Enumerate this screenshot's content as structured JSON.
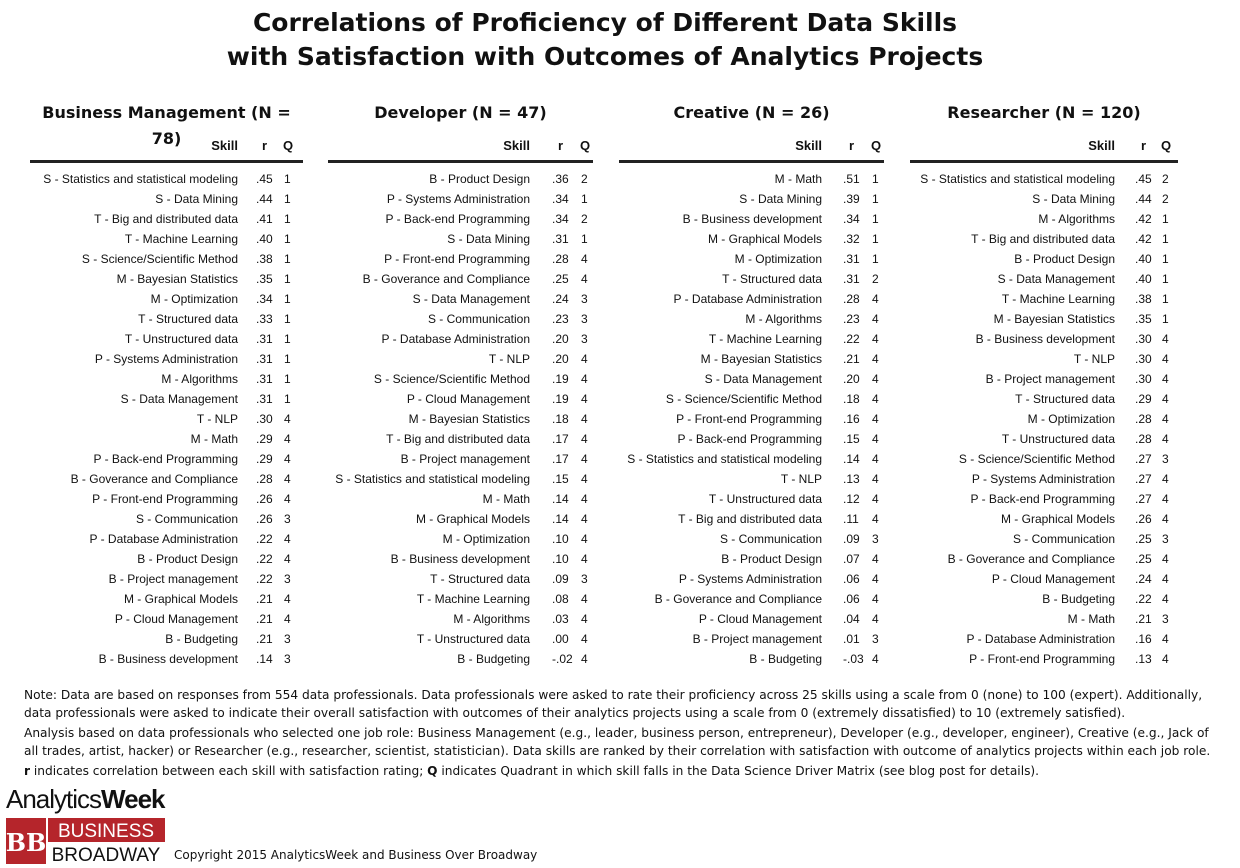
{
  "title": {
    "line1": "Correlations of Proficiency of Different Data Skills",
    "line2": "with Satisfaction with Outcomes of Analytics Projects"
  },
  "headers": {
    "skill": "Skill",
    "r": "r",
    "q": "Q"
  },
  "columns": [
    {
      "title": "Business Management (N = 78)",
      "rows": [
        {
          "skill": "S - Statistics and statistical modeling",
          "r": ".45",
          "q": "1"
        },
        {
          "skill": "S - Data Mining",
          "r": ".44",
          "q": "1"
        },
        {
          "skill": "T - Big and distributed data",
          "r": ".41",
          "q": "1"
        },
        {
          "skill": "T - Machine Learning",
          "r": ".40",
          "q": "1"
        },
        {
          "skill": "S - Science/Scientific Method",
          "r": ".38",
          "q": "1"
        },
        {
          "skill": "M - Bayesian Statistics",
          "r": ".35",
          "q": "1"
        },
        {
          "skill": "M - Optimization",
          "r": ".34",
          "q": "1"
        },
        {
          "skill": "T - Structured data",
          "r": ".33",
          "q": "1"
        },
        {
          "skill": "T - Unstructured data",
          "r": ".31",
          "q": "1"
        },
        {
          "skill": "P - Systems Administration",
          "r": ".31",
          "q": "1"
        },
        {
          "skill": "M - Algorithms",
          "r": ".31",
          "q": "1"
        },
        {
          "skill": "S - Data Management",
          "r": ".31",
          "q": "1"
        },
        {
          "skill": "T - NLP",
          "r": ".30",
          "q": "4"
        },
        {
          "skill": "M - Math",
          "r": ".29",
          "q": "4"
        },
        {
          "skill": "P - Back-end Programming",
          "r": ".29",
          "q": "4"
        },
        {
          "skill": "B - Goverance and Compliance",
          "r": ".28",
          "q": "4"
        },
        {
          "skill": "P - Front-end Programming",
          "r": ".26",
          "q": "4"
        },
        {
          "skill": "S - Communication",
          "r": ".26",
          "q": "3"
        },
        {
          "skill": "P - Database Administration",
          "r": ".22",
          "q": "4"
        },
        {
          "skill": "B - Product Design",
          "r": ".22",
          "q": "4"
        },
        {
          "skill": "B - Project management",
          "r": ".22",
          "q": "3"
        },
        {
          "skill": "M - Graphical Models",
          "r": ".21",
          "q": "4"
        },
        {
          "skill": "P - Cloud Management",
          "r": ".21",
          "q": "4"
        },
        {
          "skill": "B - Budgeting",
          "r": ".21",
          "q": "3"
        },
        {
          "skill": "B - Business development",
          "r": ".14",
          "q": "3"
        }
      ]
    },
    {
      "title": "Developer (N = 47)",
      "rows": [
        {
          "skill": "B - Product Design",
          "r": ".36",
          "q": "2"
        },
        {
          "skill": "P - Systems Administration",
          "r": ".34",
          "q": "1"
        },
        {
          "skill": "P - Back-end Programming",
          "r": ".34",
          "q": "2"
        },
        {
          "skill": "S - Data Mining",
          "r": ".31",
          "q": "1"
        },
        {
          "skill": "P - Front-end Programming",
          "r": ".28",
          "q": "4"
        },
        {
          "skill": "B - Goverance and Compliance",
          "r": ".25",
          "q": "4"
        },
        {
          "skill": "S - Data Management",
          "r": ".24",
          "q": "3"
        },
        {
          "skill": "S - Communication",
          "r": ".23",
          "q": "3"
        },
        {
          "skill": "P - Database Administration",
          "r": ".20",
          "q": "3"
        },
        {
          "skill": "T - NLP",
          "r": ".20",
          "q": "4"
        },
        {
          "skill": "S - Science/Scientific Method",
          "r": ".19",
          "q": "4"
        },
        {
          "skill": "P - Cloud Management",
          "r": ".19",
          "q": "4"
        },
        {
          "skill": "M - Bayesian Statistics",
          "r": ".18",
          "q": "4"
        },
        {
          "skill": "T - Big and distributed data",
          "r": ".17",
          "q": "4"
        },
        {
          "skill": "B - Project management",
          "r": ".17",
          "q": "4"
        },
        {
          "skill": "S - Statistics and statistical modeling",
          "r": ".15",
          "q": "4"
        },
        {
          "skill": "M - Math",
          "r": ".14",
          "q": "4"
        },
        {
          "skill": "M - Graphical Models",
          "r": ".14",
          "q": "4"
        },
        {
          "skill": "M - Optimization",
          "r": ".10",
          "q": "4"
        },
        {
          "skill": "B - Business development",
          "r": ".10",
          "q": "4"
        },
        {
          "skill": "T - Structured data",
          "r": ".09",
          "q": "3"
        },
        {
          "skill": "T - Machine Learning",
          "r": ".08",
          "q": "4"
        },
        {
          "skill": "M - Algorithms",
          "r": ".03",
          "q": "4"
        },
        {
          "skill": "T - Unstructured data",
          "r": ".00",
          "q": "4"
        },
        {
          "skill": "B - Budgeting",
          "r": "-.02",
          "q": "4"
        }
      ]
    },
    {
      "title": "Creative (N = 26)",
      "rows": [
        {
          "skill": "M - Math",
          "r": ".51",
          "q": "1"
        },
        {
          "skill": "S - Data Mining",
          "r": ".39",
          "q": "1"
        },
        {
          "skill": "B - Business development",
          "r": ".34",
          "q": "1"
        },
        {
          "skill": "M - Graphical Models",
          "r": ".32",
          "q": "1"
        },
        {
          "skill": "M - Optimization",
          "r": ".31",
          "q": "1"
        },
        {
          "skill": "T - Structured data",
          "r": ".31",
          "q": "2"
        },
        {
          "skill": "P - Database Administration",
          "r": ".28",
          "q": "4"
        },
        {
          "skill": "M - Algorithms",
          "r": ".23",
          "q": "4"
        },
        {
          "skill": "T - Machine Learning",
          "r": ".22",
          "q": "4"
        },
        {
          "skill": "M - Bayesian Statistics",
          "r": ".21",
          "q": "4"
        },
        {
          "skill": "S - Data Management",
          "r": ".20",
          "q": "4"
        },
        {
          "skill": "S - Science/Scientific Method",
          "r": ".18",
          "q": "4"
        },
        {
          "skill": "P - Front-end Programming",
          "r": ".16",
          "q": "4"
        },
        {
          "skill": "P - Back-end Programming",
          "r": ".15",
          "q": "4"
        },
        {
          "skill": "S - Statistics and statistical modeling",
          "r": ".14",
          "q": "4"
        },
        {
          "skill": "T - NLP",
          "r": ".13",
          "q": "4"
        },
        {
          "skill": "T - Unstructured data",
          "r": ".12",
          "q": "4"
        },
        {
          "skill": "T - Big and distributed data",
          "r": ".11",
          "q": "4"
        },
        {
          "skill": "S - Communication",
          "r": ".09",
          "q": "3"
        },
        {
          "skill": "B - Product Design",
          "r": ".07",
          "q": "4"
        },
        {
          "skill": "P - Systems Administration",
          "r": ".06",
          "q": "4"
        },
        {
          "skill": "B - Goverance and Compliance",
          "r": ".06",
          "q": "4"
        },
        {
          "skill": "P - Cloud Management",
          "r": ".04",
          "q": "4"
        },
        {
          "skill": "B - Project management",
          "r": ".01",
          "q": "3"
        },
        {
          "skill": "B - Budgeting",
          "r": "-.03",
          "q": "4"
        }
      ]
    },
    {
      "title": "Researcher (N = 120)",
      "rows": [
        {
          "skill": "S - Statistics and statistical modeling",
          "r": ".45",
          "q": "2"
        },
        {
          "skill": "S - Data Mining",
          "r": ".44",
          "q": "2"
        },
        {
          "skill": "M - Algorithms",
          "r": ".42",
          "q": "1"
        },
        {
          "skill": "T - Big and distributed data",
          "r": ".42",
          "q": "1"
        },
        {
          "skill": "B - Product Design",
          "r": ".40",
          "q": "1"
        },
        {
          "skill": "S - Data Management",
          "r": ".40",
          "q": "1"
        },
        {
          "skill": "T - Machine Learning",
          "r": ".38",
          "q": "1"
        },
        {
          "skill": "M - Bayesian Statistics",
          "r": ".35",
          "q": "1"
        },
        {
          "skill": "B - Business development",
          "r": ".30",
          "q": "4"
        },
        {
          "skill": "T - NLP",
          "r": ".30",
          "q": "4"
        },
        {
          "skill": "B - Project management",
          "r": ".30",
          "q": "4"
        },
        {
          "skill": "T - Structured data",
          "r": ".29",
          "q": "4"
        },
        {
          "skill": "M - Optimization",
          "r": ".28",
          "q": "4"
        },
        {
          "skill": "T - Unstructured data",
          "r": ".28",
          "q": "4"
        },
        {
          "skill": "S - Science/Scientific Method",
          "r": ".27",
          "q": "3"
        },
        {
          "skill": "P - Systems Administration",
          "r": ".27",
          "q": "4"
        },
        {
          "skill": "P - Back-end Programming",
          "r": ".27",
          "q": "4"
        },
        {
          "skill": "M - Graphical Models",
          "r": ".26",
          "q": "4"
        },
        {
          "skill": "S - Communication",
          "r": ".25",
          "q": "3"
        },
        {
          "skill": "B - Goverance and Compliance",
          "r": ".25",
          "q": "4"
        },
        {
          "skill": "P - Cloud Management",
          "r": ".24",
          "q": "4"
        },
        {
          "skill": "B - Budgeting",
          "r": ".22",
          "q": "4"
        },
        {
          "skill": "M - Math",
          "r": ".21",
          "q": "3"
        },
        {
          "skill": "P - Database Administration",
          "r": ".16",
          "q": "4"
        },
        {
          "skill": "P - Front-end Programming",
          "r": ".13",
          "q": "4"
        }
      ]
    }
  ],
  "notes": {
    "p1": "Note: Data are based on responses from 554 data professionals. Data professionals were asked to rate their proficiency across 25 skills using a scale from 0 (none) to 100 (expert). Additionally, data professionals were asked to indicate their overall satisfaction with outcomes of their analytics projects using a scale from 0 (extremely dissatisfied) to 10 (extremely satisfied).",
    "p2": "Analysis based on data professionals who selected one job role: Business Management (e.g., leader, business person, entrepreneur), Developer (e.g., developer, engineer), Creative (e.g., Jack of all trades, artist, hacker) or Researcher (e.g., researcher, scientist, statistician). Data skills are ranked by their correlation with satisfaction with outcome of analytics projects within each job role.",
    "p3_r": "r",
    "p3_a": " indicates correlation between each skill with satisfaction rating; ",
    "p3_q": "Q",
    "p3_b": " indicates Quadrant in which skill falls in the Data Science Driver Matrix (see blog post for details)."
  },
  "logos": {
    "analytics": "Analytics",
    "week": "Week",
    "bb_mark": "BB",
    "business": "BUSINESS",
    "broadway": "BROADWAY",
    "brand_red": "#b5252b"
  },
  "copyright": "Copyright 2015 AnalyticsWeek and Business Over Broadway"
}
